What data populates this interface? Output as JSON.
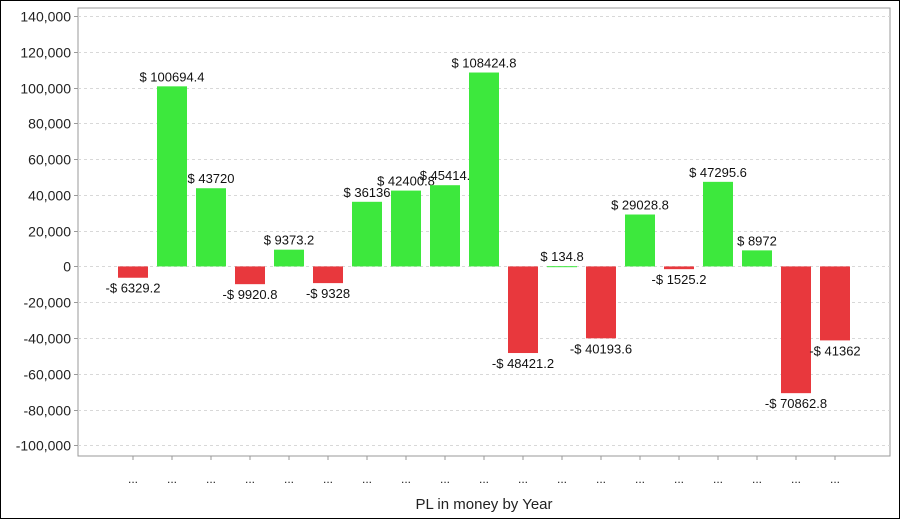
{
  "chart_data": {
    "type": "bar",
    "title": "",
    "xlabel": "PL in money by Year",
    "ylabel": "",
    "ylim": [
      -106000,
      144500
    ],
    "yticks": [
      140000,
      120000,
      100000,
      80000,
      60000,
      40000,
      20000,
      0,
      -20000,
      -40000,
      -60000,
      -80000,
      -100000
    ],
    "ytick_labels": [
      "140,000",
      "120,000",
      "100,000",
      "80,000",
      "60,000",
      "40,000",
      "20,000",
      "0",
      "-20,000",
      "-40,000",
      "-60,000",
      "-80,000",
      "-100,000"
    ],
    "grid": true,
    "categories": [
      "...",
      "...",
      "...",
      "...",
      "...",
      "...",
      "...",
      "...",
      "...",
      "...",
      "...",
      "...",
      "...",
      "...",
      "...",
      "...",
      "...",
      "...",
      "..."
    ],
    "values": [
      -6329.2,
      100694.4,
      43720,
      -9920.8,
      9373.2,
      -9328,
      36136,
      42400.8,
      45414,
      108424.8,
      -48421.2,
      134.8,
      -40193.6,
      29028.8,
      -1525.2,
      47295.6,
      8972,
      -70862.8,
      -41362
    ],
    "data_labels": [
      "-$ 6329.2",
      "$ 100694.4",
      "$ 43720",
      "-$ 9920.8",
      "$ 9373.2",
      "-$ 9328",
      "$ 36136",
      "$ 42400.8",
      "$ 45414.",
      "$ 108424.8",
      "-$ 48421.2",
      "$ 134.8",
      "-$ 40193.6",
      "$ 29028.8",
      "-$ 1525.2",
      "$ 47295.6",
      "$ 8972",
      "-$ 70862.8",
      "-$ 41362"
    ],
    "colors": {
      "positive": "#3de83d",
      "negative": "#e8383d",
      "grid": "#d8d8d8",
      "axis": "#999999"
    }
  }
}
